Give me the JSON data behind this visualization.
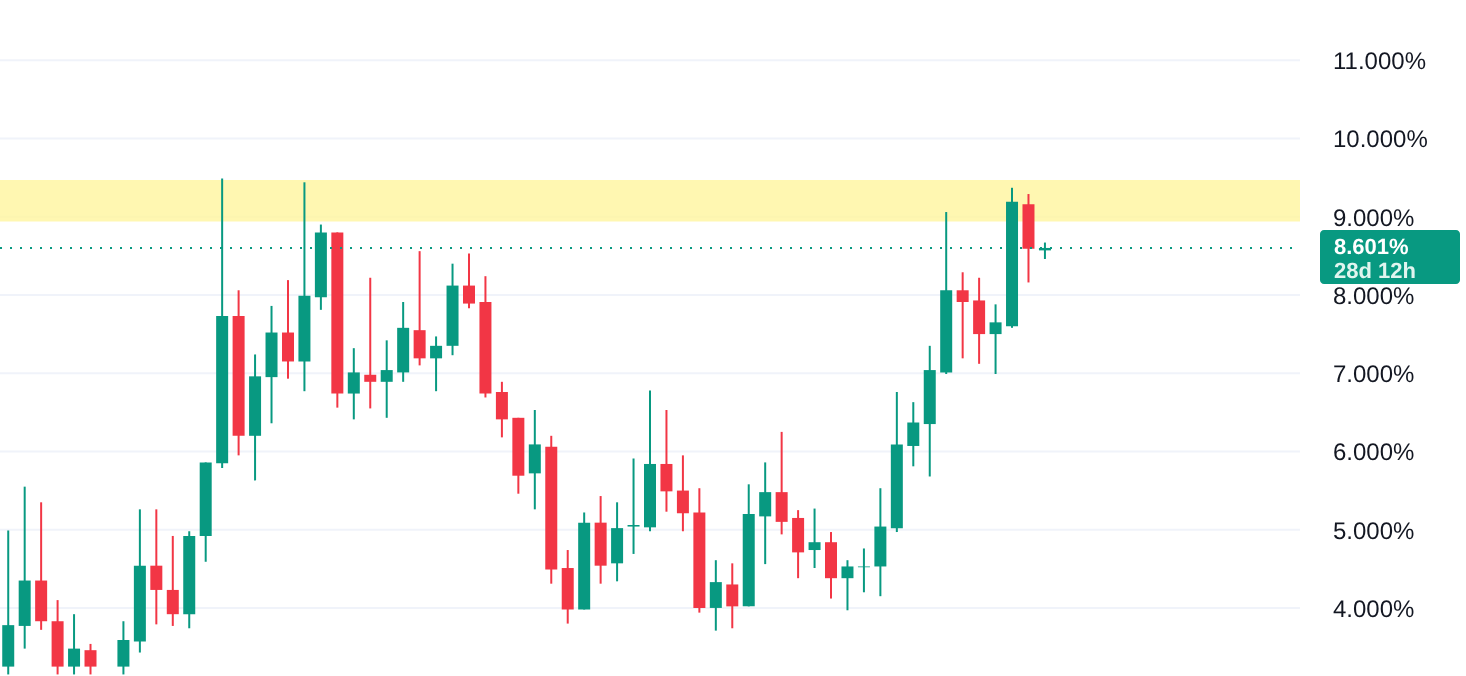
{
  "chart_data": {
    "type": "candlestick",
    "categories": [
      null,
      null,
      null,
      null,
      null,
      null,
      null,
      null,
      null,
      null,
      null,
      null,
      null,
      null,
      null,
      null,
      null,
      null,
      null,
      null,
      null,
      null,
      null,
      null,
      null,
      null,
      null,
      null,
      null,
      null,
      null,
      null,
      null,
      null,
      null,
      null,
      null,
      null,
      null,
      null,
      null,
      null,
      null,
      null,
      null,
      null,
      null,
      null,
      null,
      null,
      null,
      null,
      null,
      null,
      null,
      null,
      null,
      null,
      null,
      null,
      null,
      null,
      null,
      null,
      null,
      null,
      null,
      null,
      null,
      null,
      null,
      null,
      null,
      null,
      null,
      null,
      null,
      null,
      null
    ],
    "ohlc": [
      [
        3.25,
        4.99,
        3.15,
        3.78
      ],
      [
        3.77,
        5.55,
        3.48,
        4.35
      ],
      [
        4.35,
        5.35,
        3.72,
        3.83
      ],
      [
        3.83,
        4.1,
        3.15,
        3.25
      ],
      [
        3.25,
        3.92,
        3.15,
        3.48
      ],
      [
        3.46,
        3.54,
        3.15,
        3.25
      ],
      null,
      [
        3.25,
        3.83,
        3.15,
        3.59
      ],
      [
        3.57,
        5.26,
        3.43,
        4.54
      ],
      [
        4.54,
        5.26,
        3.79,
        4.23
      ],
      [
        4.23,
        4.92,
        3.77,
        3.92
      ],
      [
        3.92,
        4.98,
        3.74,
        4.92
      ],
      [
        4.92,
        5.86,
        4.59,
        5.86
      ],
      [
        5.85,
        9.49,
        5.79,
        7.73
      ],
      [
        7.73,
        8.06,
        5.95,
        6.2
      ],
      [
        6.2,
        7.24,
        5.63,
        6.96
      ],
      [
        6.95,
        7.86,
        6.36,
        7.52
      ],
      [
        7.52,
        8.19,
        6.93,
        7.15
      ],
      [
        7.15,
        9.44,
        6.77,
        7.99
      ],
      [
        7.97,
        8.9,
        7.81,
        8.8
      ],
      [
        8.8,
        8.8,
        6.56,
        6.74
      ],
      [
        6.74,
        7.32,
        6.41,
        7.01
      ],
      [
        6.98,
        8.22,
        6.55,
        6.89
      ],
      [
        6.89,
        7.42,
        6.43,
        7.04
      ],
      [
        7.01,
        7.91,
        6.89,
        7.58
      ],
      [
        7.55,
        8.56,
        7.1,
        7.19
      ],
      [
        7.19,
        7.47,
        6.77,
        7.35
      ],
      [
        7.35,
        8.4,
        7.23,
        8.12
      ],
      [
        8.12,
        8.53,
        7.83,
        7.89
      ],
      [
        7.91,
        8.24,
        6.69,
        6.74
      ],
      [
        6.76,
        6.89,
        6.18,
        6.41
      ],
      [
        6.43,
        6.43,
        5.46,
        5.69
      ],
      [
        5.72,
        6.53,
        5.26,
        6.09
      ],
      [
        6.06,
        6.2,
        4.31,
        4.49
      ],
      [
        4.51,
        4.74,
        3.8,
        3.98
      ],
      [
        3.98,
        5.22,
        3.98,
        5.09
      ],
      [
        5.09,
        5.43,
        4.31,
        4.54
      ],
      [
        4.57,
        5.35,
        4.34,
        5.02
      ],
      [
        5.04,
        5.91,
        4.69,
        5.06
      ],
      [
        5.03,
        6.78,
        4.98,
        5.84
      ],
      [
        5.84,
        6.53,
        5.23,
        5.49
      ],
      [
        5.5,
        5.95,
        4.98,
        5.21
      ],
      [
        5.22,
        5.53,
        3.94,
        4.0
      ],
      [
        4.0,
        4.61,
        3.71,
        4.33
      ],
      [
        4.3,
        4.57,
        3.74,
        4.02
      ],
      [
        4.02,
        5.58,
        4.02,
        5.2
      ],
      [
        5.17,
        5.86,
        4.56,
        5.48
      ],
      [
        5.48,
        6.25,
        4.94,
        5.1
      ],
      [
        5.15,
        5.25,
        4.38,
        4.71
      ],
      [
        4.74,
        5.27,
        4.51,
        4.84
      ],
      [
        4.84,
        4.97,
        4.12,
        4.38
      ],
      [
        4.38,
        4.61,
        3.97,
        4.53
      ],
      [
        4.52,
        4.76,
        4.2,
        4.53
      ],
      [
        4.53,
        5.53,
        4.15,
        5.04
      ],
      [
        5.02,
        6.76,
        4.97,
        6.09
      ],
      [
        6.07,
        6.63,
        5.81,
        6.37
      ],
      [
        6.35,
        7.35,
        5.68,
        7.04
      ],
      [
        7.01,
        9.06,
        6.99,
        8.06
      ],
      [
        8.06,
        8.29,
        7.19,
        7.91
      ],
      [
        7.93,
        8.22,
        7.12,
        7.5
      ],
      [
        7.5,
        7.88,
        6.99,
        7.65
      ],
      [
        7.6,
        9.37,
        7.58,
        9.19
      ],
      [
        9.16,
        9.29,
        8.16,
        8.59
      ],
      [
        8.57,
        8.67,
        8.46,
        8.601
      ],
      null,
      null,
      null,
      null,
      null,
      null,
      null,
      null,
      null,
      null,
      null,
      null,
      null,
      null,
      null
    ],
    "colors": [
      "#089981",
      "#089981",
      "#f23645",
      "#f23645",
      "#089981",
      "#f23645",
      null,
      "#089981",
      "#089981",
      "#f23645",
      "#f23645",
      "#089981",
      "#089981",
      "#089981",
      "#f23645",
      "#089981",
      "#089981",
      "#f23645",
      "#089981",
      "#089981",
      "#f23645",
      "#089981",
      "#f23645",
      "#089981",
      "#089981",
      "#f23645",
      "#089981",
      "#089981",
      "#f23645",
      "#f23645",
      "#f23645",
      "#f23645",
      "#089981",
      "#f23645",
      "#f23645",
      "#089981",
      "#f23645",
      "#089981",
      "#089981",
      "#089981",
      "#f23645",
      "#f23645",
      "#f23645",
      "#089981",
      "#f23645",
      "#089981",
      "#089981",
      "#f23645",
      "#f23645",
      "#089981",
      "#f23645",
      "#089981",
      "#089981",
      "#089981",
      "#089981",
      "#089981",
      "#089981",
      "#089981",
      "#f23645",
      "#f23645",
      "#089981",
      "#089981",
      "#f23645",
      "#089981",
      null,
      null,
      null,
      null,
      null,
      null,
      null,
      null,
      null,
      null,
      null,
      null,
      null,
      null,
      null
    ],
    "ylim": [
      3.13,
      11.77
    ],
    "yticks": [
      {
        "value": 4,
        "label": "4.000%"
      },
      {
        "value": 5,
        "label": "5.000%"
      },
      {
        "value": 6,
        "label": "6.000%"
      },
      {
        "value": 7,
        "label": "7.000%"
      },
      {
        "value": 8,
        "label": "8.000%"
      },
      {
        "value": 9,
        "label": "9.000%"
      },
      {
        "value": 10,
        "label": "10.000%"
      },
      {
        "value": 11,
        "label": "11.000%"
      }
    ],
    "grid": "y",
    "ref_lines": [
      {
        "axis": "y",
        "value": 8.601,
        "label": "8.601%",
        "color": "#089981",
        "line_style": "dotted"
      }
    ],
    "bands": [
      {
        "axis": "y",
        "from": 8.94,
        "to": 9.47,
        "color": "#fff59d"
      }
    ],
    "annotations": [
      "28d 12h"
    ]
  }
}
